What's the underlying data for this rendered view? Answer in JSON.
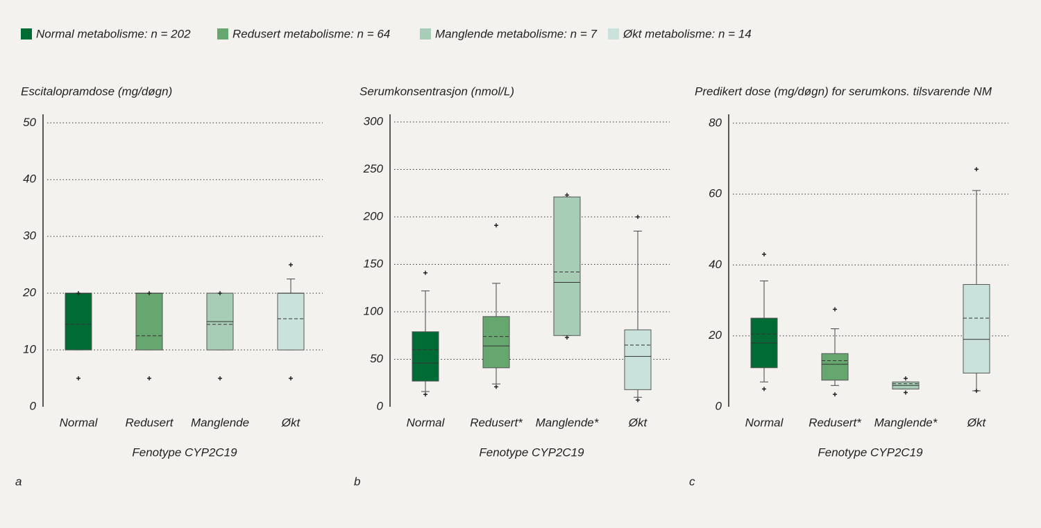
{
  "legend": [
    {
      "name": "Normal metabolisme: n = 202",
      "color": "#006b35"
    },
    {
      "name": "Redusert metabolisme: n = 64",
      "color": "#66a66f"
    },
    {
      "name": "Manglende metabolisme: n = 7",
      "color": "#a8cdb6"
    },
    {
      "name": "Økt metabolisme: n = 14",
      "color": "#c9e2dc"
    }
  ],
  "chart_data": [
    {
      "type": "box",
      "panel": "a",
      "title": "Escitalopramdose (mg/døgn)",
      "x_label": "Fenotype CYP2C19",
      "categories": [
        "Normal",
        "Redusert",
        "Manglende",
        "Økt"
      ],
      "colors": [
        "#006b35",
        "#66a66f",
        "#a8cdb6",
        "#c9e2dc"
      ],
      "ylim": [
        0,
        51.5
      ],
      "yticks": [
        0,
        10,
        20,
        30,
        40,
        50
      ],
      "grid": true,
      "boxes": [
        {
          "whisker_low": 10,
          "q1": 10,
          "median": 20,
          "mean": 14.5,
          "q3": 20,
          "whisker_high": 20,
          "outliers": [
            5,
            20
          ]
        },
        {
          "whisker_low": 10,
          "q1": 10,
          "median": 20,
          "mean": 12.5,
          "q3": 20,
          "whisker_high": 20,
          "outliers": [
            5,
            20
          ]
        },
        {
          "whisker_low": 10,
          "q1": 10,
          "median": 15,
          "mean": 14.5,
          "q3": 20,
          "whisker_high": 20,
          "outliers": [
            5,
            20
          ]
        },
        {
          "whisker_low": 10,
          "q1": 10,
          "median": 20,
          "mean": 15.5,
          "q3": 20,
          "whisker_high": 22.5,
          "outliers": [
            5,
            25
          ]
        }
      ]
    },
    {
      "type": "box",
      "panel": "b",
      "title": "Serumkonsentrasjon (nmol/L)",
      "x_label": "Fenotype CYP2C19",
      "categories": [
        "Normal",
        "Redusert*",
        "Manglende*",
        "Økt"
      ],
      "colors": [
        "#006b35",
        "#66a66f",
        "#a8cdb6",
        "#c9e2dc"
      ],
      "ylim": [
        0,
        308
      ],
      "yticks": [
        0,
        50,
        100,
        150,
        200,
        250,
        300
      ],
      "grid": true,
      "boxes": [
        {
          "whisker_low": 16,
          "q1": 27,
          "median": 46,
          "mean": 60,
          "q3": 79,
          "whisker_high": 122,
          "outliers": [
            13,
            141
          ]
        },
        {
          "whisker_low": 24,
          "q1": 41,
          "median": 64,
          "mean": 74,
          "q3": 95,
          "whisker_high": 130,
          "outliers": [
            21,
            191
          ]
        },
        {
          "whisker_low": 75,
          "q1": 75,
          "median": 131,
          "mean": 142,
          "q3": 221,
          "whisker_high": 221,
          "outliers": [
            73,
            223
          ]
        },
        {
          "whisker_low": 10,
          "q1": 18,
          "median": 53,
          "mean": 65,
          "q3": 81,
          "whisker_high": 185,
          "outliers": [
            7,
            200
          ]
        }
      ]
    },
    {
      "type": "box",
      "panel": "c",
      "title": "Predikert dose (mg/døgn) for serumkons. tilsvarende NM",
      "x_label": "Fenotype CYP2C19",
      "categories": [
        "Normal",
        "Redusert*",
        "Manglende*",
        "Økt"
      ],
      "colors": [
        "#006b35",
        "#66a66f",
        "#a8cdb6",
        "#c9e2dc"
      ],
      "ylim": [
        0,
        82.5
      ],
      "yticks": [
        0,
        20,
        40,
        60,
        80
      ],
      "grid": true,
      "boxes": [
        {
          "whisker_low": 7,
          "q1": 11,
          "median": 18,
          "mean": 20.5,
          "q3": 25,
          "whisker_high": 35.5,
          "outliers": [
            5,
            43
          ]
        },
        {
          "whisker_low": 6,
          "q1": 7.5,
          "median": 12,
          "mean": 13,
          "q3": 15,
          "whisker_high": 22,
          "outliers": [
            3.5,
            27.5
          ]
        },
        {
          "whisker_low": 5,
          "q1": 5,
          "median": 6,
          "mean": 6.5,
          "q3": 7,
          "whisker_high": 7,
          "outliers": [
            4,
            8
          ]
        },
        {
          "whisker_low": 4.5,
          "q1": 9.5,
          "median": 19,
          "mean": 25,
          "q3": 34.5,
          "whisker_high": 61,
          "outliers": [
            4.5,
            67
          ]
        }
      ]
    }
  ]
}
